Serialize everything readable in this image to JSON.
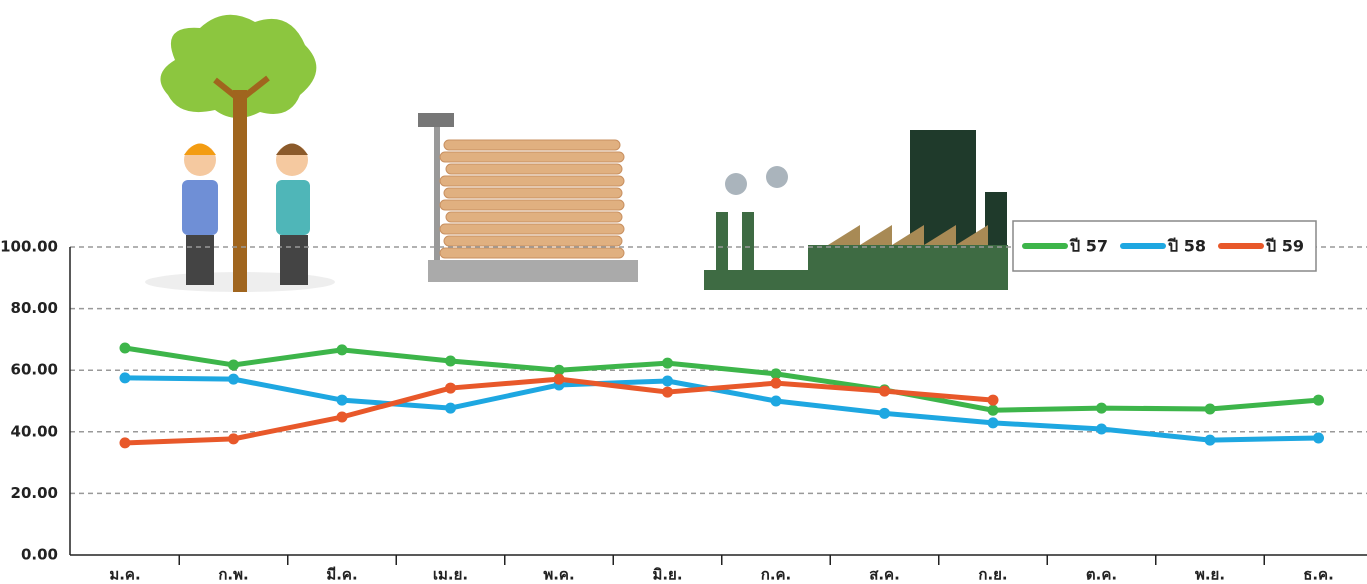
{
  "chart_data": {
    "type": "line",
    "categories": [
      "ม.ค.",
      "ก.พ.",
      "มี.ค.",
      "เม.ย.",
      "พ.ค.",
      "มิ.ย.",
      "ก.ค.",
      "ส.ค.",
      "ก.ย.",
      "ต.ค.",
      "พ.ย.",
      "ธ.ค."
    ],
    "series": [
      {
        "name": "ปี 57",
        "color": "#3db54a",
        "values": [
          67.2,
          61.7,
          66.6,
          63.0,
          60.0,
          62.3,
          58.8,
          53.6,
          47.0,
          47.7,
          47.4,
          50.3
        ]
      },
      {
        "name": "ปี 58",
        "color": "#1ea7e1",
        "values": [
          57.5,
          57.1,
          50.3,
          47.7,
          55.2,
          56.5,
          50.0,
          46.0,
          42.9,
          40.9,
          37.3,
          38.0
        ]
      },
      {
        "name": "ปี 59",
        "color": "#e8582a",
        "values": [
          36.4,
          37.7,
          44.8,
          54.2,
          57.1,
          52.9,
          55.8,
          53.2,
          50.3,
          null,
          null,
          null
        ]
      }
    ],
    "ylim": [
      0,
      100
    ],
    "yticks": [
      {
        "value": 0,
        "label": "0.00"
      },
      {
        "value": 20,
        "label": "20.00"
      },
      {
        "value": 40,
        "label": "40.00"
      },
      {
        "value": 60,
        "label": "60.00"
      },
      {
        "value": 80,
        "label": "80.00"
      },
      {
        "value": 100,
        "label": "100.00"
      }
    ],
    "grid": true,
    "legend": "top-right"
  }
}
